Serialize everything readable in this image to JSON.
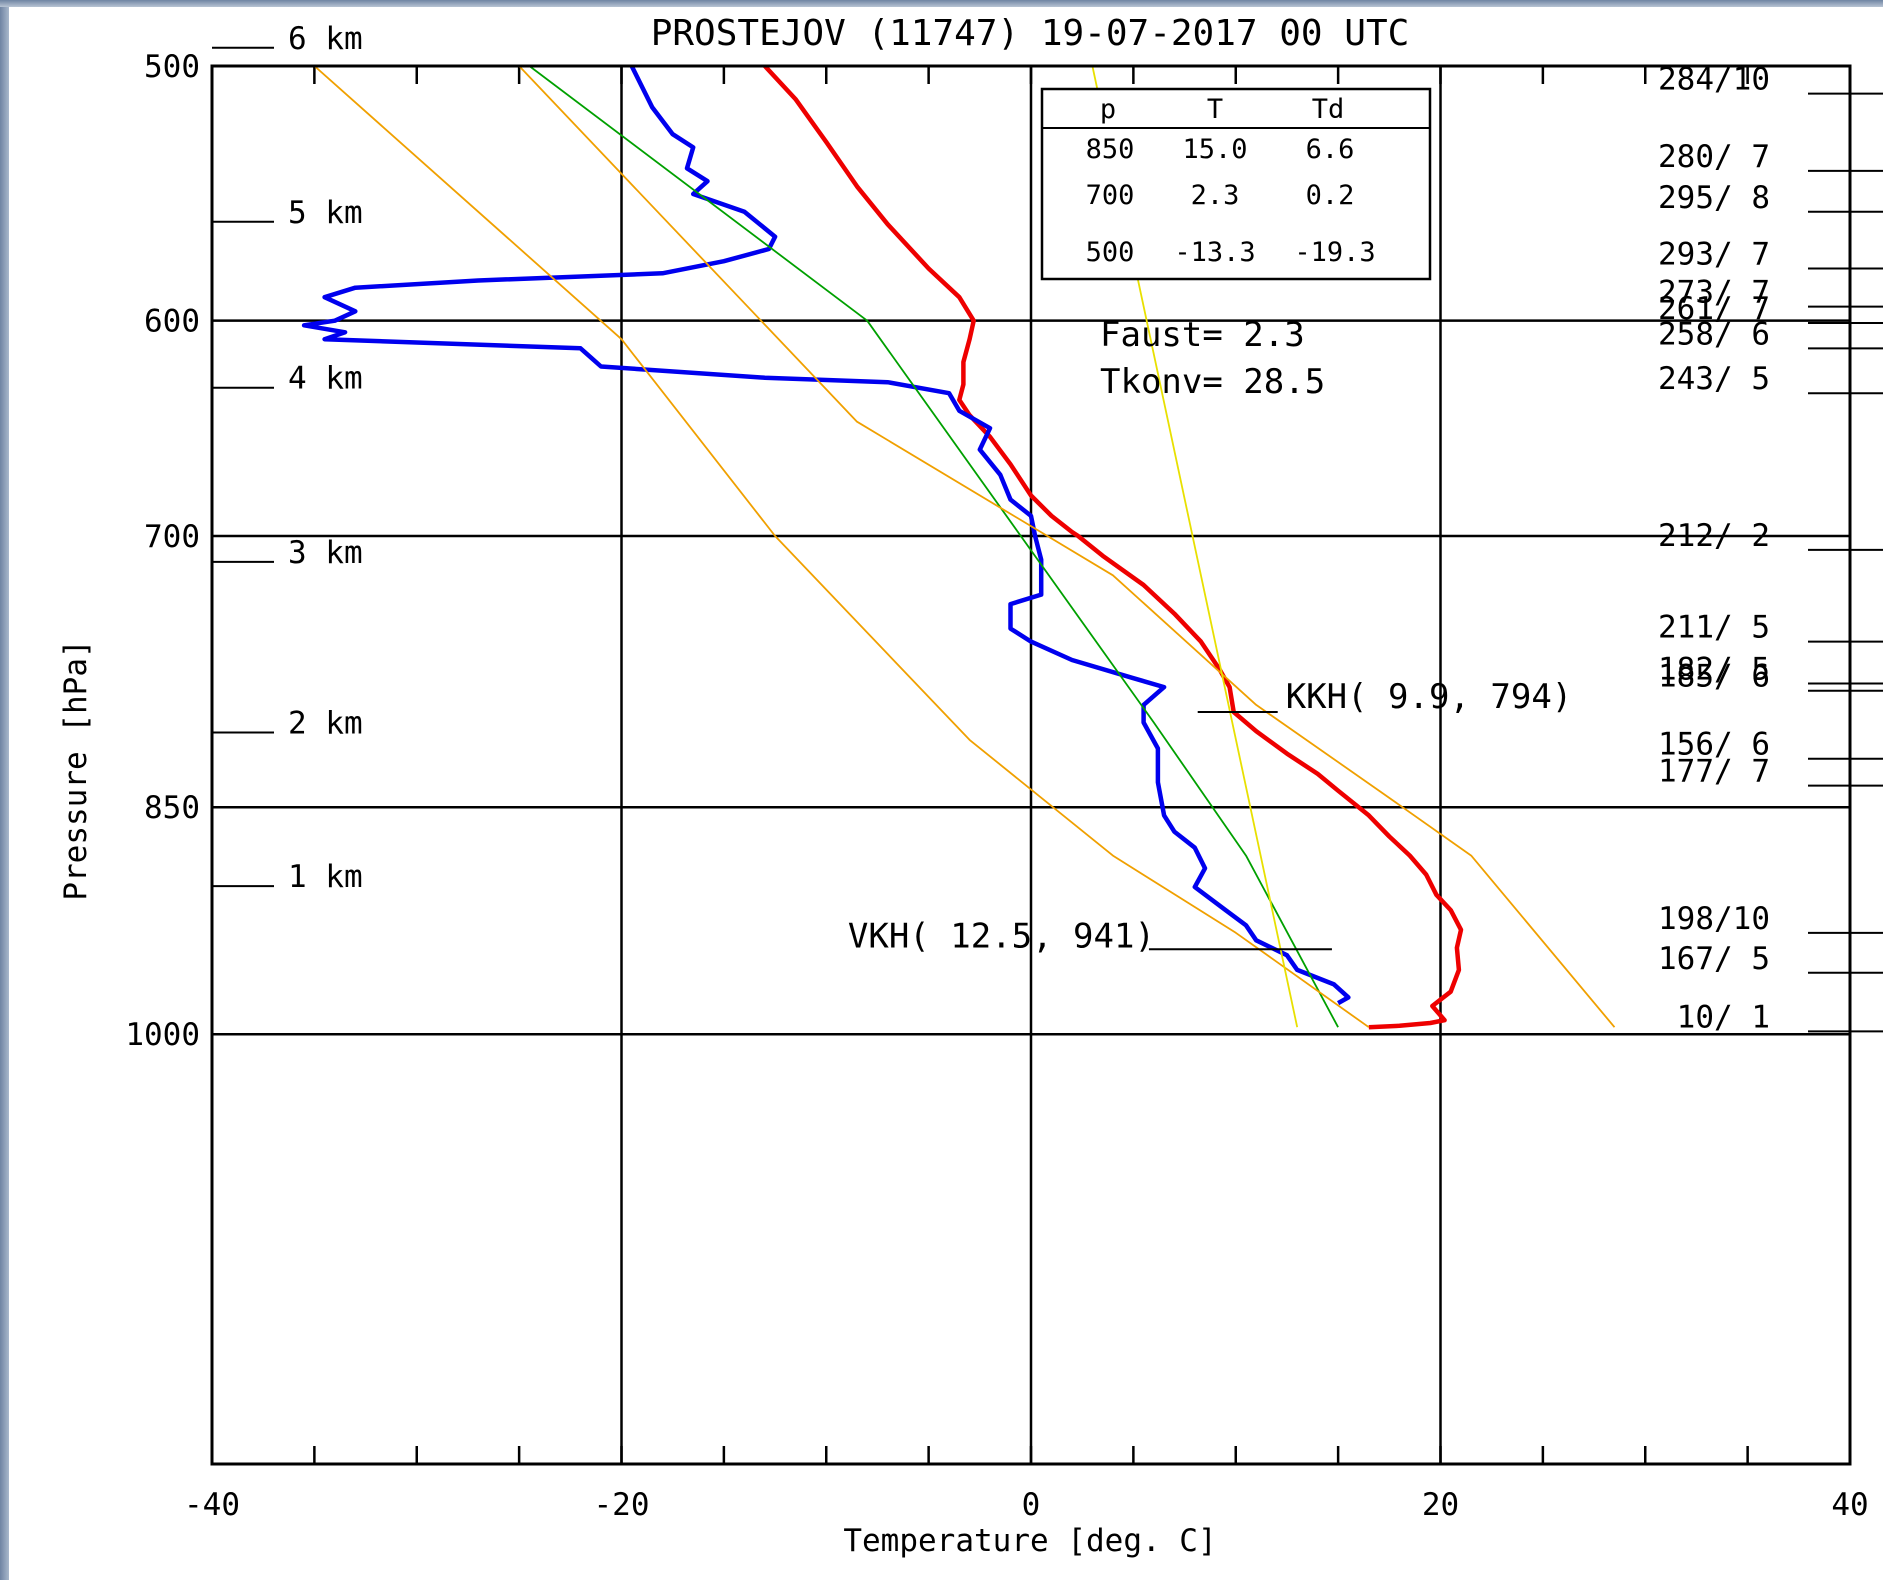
{
  "chart_data": {
    "type": "line",
    "title": "PROSTEJOV (11747)    19-07-2017   00  UTC",
    "xlabel": "Temperature [deg. C]",
    "ylabel": "Pressure [hPa]",
    "xlim": [
      -40,
      40
    ],
    "ylim": [
      500,
      1050
    ],
    "x_ticks": [
      "-40",
      "-20",
      "0",
      "20",
      "40"
    ],
    "y_ticks": [
      {
        "p": 500,
        "label": "500"
      },
      {
        "p": 600,
        "label": "600"
      },
      {
        "p": 700,
        "label": "700"
      },
      {
        "p": 850,
        "label": "850"
      },
      {
        "p": 1000,
        "label": "1000"
      }
    ],
    "height_labels": [
      {
        "p": 490,
        "label": "6 km"
      },
      {
        "p": 555,
        "label": "5 km"
      },
      {
        "p": 625,
        "label": "4 km"
      },
      {
        "p": 708,
        "label": "3 km"
      },
      {
        "p": 800,
        "label": "2 km"
      },
      {
        "p": 893,
        "label": "1 km"
      }
    ],
    "series": [
      {
        "key": "temperature",
        "color": "#ee0000",
        "points": [
          [
            -13,
            500
          ],
          [
            -11.5,
            512
          ],
          [
            -10,
            528
          ],
          [
            -8.5,
            545
          ],
          [
            -7,
            560
          ],
          [
            -5,
            578
          ],
          [
            -3.5,
            590
          ],
          [
            -2.8,
            600
          ],
          [
            -3,
            608
          ],
          [
            -3.3,
            618
          ],
          [
            -3.3,
            628
          ],
          [
            -3.5,
            635
          ],
          [
            -3,
            642
          ],
          [
            -2,
            652
          ],
          [
            -1,
            665
          ],
          [
            0,
            680
          ],
          [
            1,
            690
          ],
          [
            2,
            698
          ],
          [
            2.3,
            700
          ],
          [
            3.5,
            710
          ],
          [
            5.5,
            725
          ],
          [
            7,
            740
          ],
          [
            8.3,
            755
          ],
          [
            9.2,
            770
          ],
          [
            9.7,
            780
          ],
          [
            9.9,
            794
          ],
          [
            11,
            805
          ],
          [
            12.5,
            818
          ],
          [
            14,
            830
          ],
          [
            15,
            840
          ],
          [
            16.5,
            855
          ],
          [
            17.5,
            868
          ],
          [
            18.5,
            880
          ],
          [
            19.3,
            892
          ],
          [
            19.8,
            905
          ],
          [
            20.5,
            915
          ],
          [
            21,
            928
          ],
          [
            20.8,
            940
          ],
          [
            20.9,
            955
          ],
          [
            20.5,
            970
          ],
          [
            19.6,
            980
          ],
          [
            20.2,
            990
          ],
          [
            19.5,
            992
          ],
          [
            18,
            994
          ],
          [
            16.5,
            995
          ]
        ]
      },
      {
        "key": "dew_point",
        "color": "#0000ee",
        "points": [
          [
            -19.5,
            500
          ],
          [
            -18.5,
            515
          ],
          [
            -17.5,
            525
          ],
          [
            -16.5,
            530
          ],
          [
            -16.8,
            538
          ],
          [
            -15.8,
            543
          ],
          [
            -16.5,
            548
          ],
          [
            -14,
            555
          ],
          [
            -12.5,
            565
          ],
          [
            -12.8,
            570
          ],
          [
            -15,
            575
          ],
          [
            -18,
            580
          ],
          [
            -27,
            583
          ],
          [
            -33,
            586
          ],
          [
            -34.5,
            590
          ],
          [
            -33,
            596
          ],
          [
            -34,
            600
          ],
          [
            -35.5,
            602
          ],
          [
            -33.5,
            605
          ],
          [
            -34.5,
            608
          ],
          [
            -22,
            612
          ],
          [
            -21.5,
            616
          ],
          [
            -21,
            620
          ],
          [
            -13,
            625
          ],
          [
            -7,
            627
          ],
          [
            -4,
            632
          ],
          [
            -3.5,
            640
          ],
          [
            -2,
            648
          ],
          [
            -2.5,
            658
          ],
          [
            -1.5,
            670
          ],
          [
            -1,
            682
          ],
          [
            0,
            690
          ],
          [
            0.2,
            700
          ],
          [
            0.5,
            712
          ],
          [
            0.5,
            730
          ],
          [
            -1,
            735
          ],
          [
            -1,
            748
          ],
          [
            0,
            755
          ],
          [
            2,
            765
          ],
          [
            5,
            775
          ],
          [
            6.5,
            780
          ],
          [
            5.5,
            790
          ],
          [
            5.5,
            800
          ],
          [
            6.2,
            815
          ],
          [
            6.2,
            835
          ],
          [
            6.5,
            855
          ],
          [
            7,
            865
          ],
          [
            8,
            875
          ],
          [
            8.5,
            888
          ],
          [
            8,
            900
          ],
          [
            9.5,
            915
          ],
          [
            10.5,
            925
          ],
          [
            11,
            935
          ],
          [
            12.5,
            945
          ],
          [
            13,
            955
          ],
          [
            14.8,
            965
          ],
          [
            15.5,
            974
          ],
          [
            15,
            978
          ]
        ]
      },
      {
        "key": "green_line",
        "color": "#00a000",
        "points": [
          [
            -24.5,
            500
          ],
          [
            -8,
            600
          ],
          [
            -0.5,
            700
          ],
          [
            6,
            800
          ],
          [
            10.5,
            880
          ],
          [
            15,
            995
          ]
        ]
      },
      {
        "key": "orange_line_1",
        "color": "#f0a000",
        "points": [
          [
            -35,
            500
          ],
          [
            -20,
            608
          ],
          [
            -12.5,
            700
          ],
          [
            -3,
            810
          ],
          [
            4,
            880
          ],
          [
            10,
            930
          ],
          [
            16.5,
            995
          ]
        ]
      },
      {
        "key": "orange_line_2",
        "color": "#f0a000",
        "points": [
          [
            -25,
            500
          ],
          [
            -8.5,
            645
          ],
          [
            4,
            720
          ],
          [
            11,
            790
          ],
          [
            17,
            840
          ],
          [
            21.5,
            880
          ],
          [
            28.5,
            995
          ]
        ]
      },
      {
        "key": "yellow_line",
        "color": "#e8e000",
        "points": [
          [
            3,
            500
          ],
          [
            13,
            995
          ]
        ]
      }
    ],
    "annotations": [
      {
        "key": "kkh",
        "text": "KKH(   9.9, 794)",
        "t": 9.9,
        "p": 794
      },
      {
        "key": "vkh",
        "text": "VKH( 12.5, 941)",
        "t": 12.5,
        "p": 941
      }
    ],
    "wind_labels": [
      {
        "p": 510,
        "text": "284/10"
      },
      {
        "p": 539,
        "text": "280/ 7"
      },
      {
        "p": 555,
        "text": "295/ 8"
      },
      {
        "p": 578,
        "text": "293/ 7"
      },
      {
        "p": 594,
        "text": "273/ 7"
      },
      {
        "p": 601,
        "text": "261/ 7"
      },
      {
        "p": 612,
        "text": "258/ 6"
      },
      {
        "p": 632,
        "text": "243/ 5"
      },
      {
        "p": 707,
        "text": "212/ 2"
      },
      {
        "p": 755,
        "text": "211/ 5"
      },
      {
        "p": 778,
        "text": "182/ 5"
      },
      {
        "p": 782,
        "text": "185/ 6"
      },
      {
        "p": 821,
        "text": "156/ 6"
      },
      {
        "p": 837,
        "text": "177/ 7"
      },
      {
        "p": 930,
        "text": "198/10"
      },
      {
        "p": 957,
        "text": "167/ 5"
      },
      {
        "p": 998,
        "text": "10/ 1"
      }
    ],
    "info_table": {
      "headers": [
        "p",
        "T",
        "Td"
      ],
      "rows": [
        [
          "850",
          "15.0",
          "6.6"
        ],
        [
          "700",
          "2.3",
          "0.2"
        ],
        [
          "500",
          "-13.3",
          "-19.3"
        ]
      ]
    },
    "indices": {
      "faust": "Faust=   2.3",
      "tkonv": "Tkonv=  28.5"
    }
  }
}
